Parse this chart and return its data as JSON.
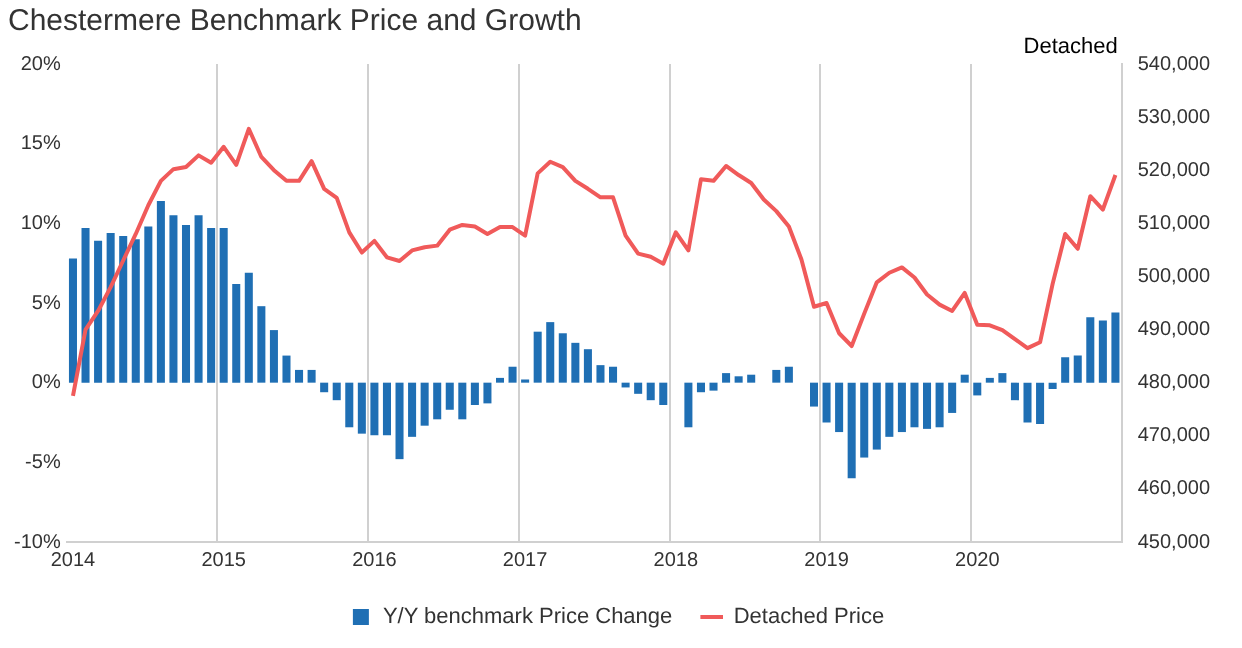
{
  "chart_data": {
    "type": "bar",
    "title": "Chestermere Benchmark Price and Growth",
    "y2label": "Detached",
    "categories": [
      "2014",
      null,
      null,
      null,
      null,
      null,
      null,
      null,
      null,
      null,
      null,
      null,
      "2015",
      null,
      null,
      null,
      null,
      null,
      null,
      null,
      null,
      null,
      null,
      null,
      "2016",
      null,
      null,
      null,
      null,
      null,
      null,
      null,
      null,
      null,
      null,
      null,
      "2017",
      null,
      null,
      null,
      null,
      null,
      null,
      null,
      null,
      null,
      null,
      null,
      "2018",
      null,
      null,
      null,
      null,
      null,
      null,
      null,
      null,
      null,
      null,
      null,
      "2019",
      null,
      null,
      null,
      null,
      null,
      null,
      null,
      null,
      null,
      null,
      null,
      "2020",
      null,
      null,
      null,
      null,
      null,
      null,
      null,
      null,
      null,
      null,
      null
    ],
    "series": [
      {
        "name": "Y/Y benchmark Price Change",
        "color": "#1f6fb4",
        "values": [
          7.8,
          9.7,
          8.9,
          9.4,
          9.2,
          9.0,
          9.8,
          11.4,
          10.5,
          9.9,
          10.5,
          9.7,
          9.7,
          6.2,
          6.9,
          4.8,
          3.3,
          1.7,
          0.8,
          0.8,
          -0.6,
          -1.1,
          -2.8,
          -3.2,
          -3.3,
          -3.3,
          -4.8,
          -3.4,
          -2.7,
          -2.3,
          -1.7,
          -2.3,
          -1.4,
          -1.3,
          0.3,
          1.0,
          0.2,
          3.2,
          3.8,
          3.1,
          2.5,
          2.1,
          1.1,
          1.0,
          -0.3,
          -0.7,
          -1.1,
          -1.4,
          0.0,
          -2.8,
          -0.6,
          -0.5,
          0.6,
          0.4,
          0.5,
          0.0,
          0.8,
          1.0,
          0.0,
          -1.5,
          -2.5,
          -3.1,
          -6.0,
          -4.7,
          -4.2,
          -3.4,
          -3.1,
          -2.8,
          -2.9,
          -2.8,
          -1.9,
          0.5,
          -0.8,
          0.3,
          0.6,
          -1.1,
          -2.5,
          -2.6,
          -0.4,
          1.6,
          1.7,
          4.1,
          3.9,
          4.4
        ]
      },
      {
        "name": "Detached Price",
        "type": "line",
        "axis": "y2",
        "color": "#f05a5a",
        "values": [
          477500,
          490000,
          493500,
          498000,
          503000,
          508000,
          513400,
          518000,
          520200,
          520600,
          522800,
          521400,
          524400,
          521000,
          527800,
          522500,
          520000,
          518000,
          518000,
          521700,
          516500,
          514800,
          508300,
          504500,
          506700,
          503600,
          502900,
          504900,
          505500,
          505800,
          508800,
          509700,
          509400,
          508000,
          509300,
          509300,
          507700,
          519400,
          521600,
          520600,
          518000,
          516500,
          514900,
          514900,
          507700,
          504300,
          503700,
          502400,
          508300,
          504900,
          518300,
          518000,
          520800,
          519100,
          517600,
          514500,
          512300,
          509400,
          503200,
          494300,
          495000,
          489300,
          486900,
          493000,
          498900,
          500700,
          501700,
          499800,
          496600,
          494700,
          493500,
          496900,
          490900,
          490800,
          489900,
          488200,
          486500,
          487600,
          498600,
          508000,
          505200,
          515100,
          512600,
          519100
        ]
      }
    ],
    "ylim": [
      -10,
      20
    ],
    "yticks": [
      {
        "value": -10,
        "label": "-10%"
      },
      {
        "value": -5,
        "label": "-5%"
      },
      {
        "value": 0,
        "label": "0%"
      },
      {
        "value": 5,
        "label": "5%"
      },
      {
        "value": 10,
        "label": "10%"
      },
      {
        "value": 15,
        "label": "15%"
      },
      {
        "value": 20,
        "label": "20%"
      }
    ],
    "y2lim": [
      450000,
      540000
    ],
    "y2ticks": [
      {
        "value": 450000,
        "label": "450,000"
      },
      {
        "value": 460000,
        "label": "460,000"
      },
      {
        "value": 470000,
        "label": "470,000"
      },
      {
        "value": 480000,
        "label": "480,000"
      },
      {
        "value": 490000,
        "label": "490,000"
      },
      {
        "value": 500000,
        "label": "500,000"
      },
      {
        "value": 510000,
        "label": "510,000"
      },
      {
        "value": 520000,
        "label": "520,000"
      },
      {
        "value": 530000,
        "label": "530,000"
      },
      {
        "value": 540000,
        "label": "540,000"
      }
    ],
    "grid": "x",
    "legend": "bottom",
    "marker": "none",
    "line_style": "solid"
  }
}
